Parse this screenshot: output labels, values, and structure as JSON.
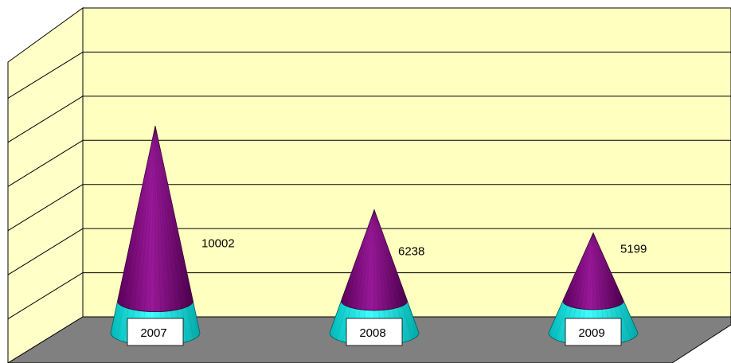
{
  "chart_data": {
    "type": "bar",
    "shape": "cone-3d",
    "title": "",
    "xlabel": "",
    "ylabel": "",
    "categories": [
      "2007",
      "2008",
      "2009"
    ],
    "values": [
      10002,
      6238,
      5199
    ],
    "ylim": [
      0,
      12000
    ],
    "grid": true,
    "legend": "none",
    "colors": {
      "cone_top": "#800080",
      "cone_base": "#00e0e0",
      "wall": "#ffffc0",
      "floor": "#808080",
      "label_box": "#ffffff"
    }
  }
}
